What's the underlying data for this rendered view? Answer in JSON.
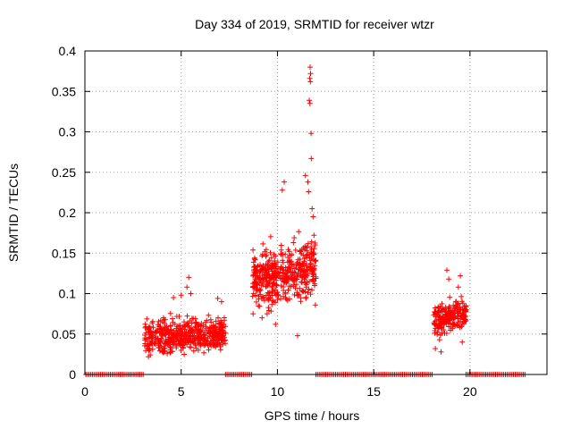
{
  "chart_data": {
    "type": "scatter",
    "title": "Day 334 of 2019, SRMTID for receiver wtzr",
    "xlabel": "GPS time / hours",
    "ylabel": "SRMTID / TECUs",
    "xlim": [
      0,
      24
    ],
    "ylim": [
      0,
      0.4
    ],
    "x_ticks": [
      0,
      5,
      10,
      15,
      20
    ],
    "x_tick_labels": [
      "0",
      "5",
      "10",
      "15",
      "20"
    ],
    "y_ticks": [
      0,
      0.05,
      0.1,
      0.15,
      0.2,
      0.25,
      0.3,
      0.35,
      0.4
    ],
    "y_tick_labels": [
      "0",
      "0.05",
      "0.1",
      "0.15",
      "0.2",
      "0.25",
      "0.3",
      "0.35",
      "0.4"
    ],
    "grid": true,
    "marker": "+",
    "color": "#ff0000",
    "series": [
      {
        "name": "SRMTID",
        "segments": [
          {
            "x_start": 3.1,
            "x_end": 7.3,
            "y_center": 0.048,
            "y_spread": 0.026,
            "count": 520
          },
          {
            "x_start": 8.7,
            "x_end": 12.0,
            "y_center": 0.125,
            "y_spread": 0.045,
            "count": 460
          },
          {
            "x_start": 18.1,
            "x_end": 19.8,
            "y_center": 0.07,
            "y_spread": 0.024,
            "count": 230
          }
        ],
        "zero_ranges": [
          [
            0.05,
            3.1
          ],
          [
            7.3,
            8.7
          ],
          [
            12.0,
            18.1
          ],
          [
            19.8,
            22.9
          ]
        ],
        "outliers": [
          [
            11.7,
            0.38
          ],
          [
            11.72,
            0.372
          ],
          [
            11.68,
            0.366
          ],
          [
            11.71,
            0.362
          ],
          [
            11.65,
            0.339
          ],
          [
            11.69,
            0.335
          ],
          [
            11.75,
            0.298
          ],
          [
            11.76,
            0.267
          ],
          [
            11.45,
            0.246
          ],
          [
            11.58,
            0.238
          ],
          [
            11.62,
            0.226
          ],
          [
            10.35,
            0.238
          ],
          [
            10.25,
            0.228
          ],
          [
            11.8,
            0.205
          ],
          [
            11.85,
            0.195
          ],
          [
            11.9,
            0.172
          ],
          [
            11.95,
            0.14
          ],
          [
            11.97,
            0.086
          ],
          [
            5.4,
            0.12
          ],
          [
            5.3,
            0.108
          ],
          [
            5.5,
            0.1
          ],
          [
            5.0,
            0.098
          ],
          [
            4.6,
            0.095
          ],
          [
            6.9,
            0.094
          ],
          [
            7.1,
            0.09
          ],
          [
            18.8,
            0.129
          ],
          [
            18.9,
            0.118
          ],
          [
            19.5,
            0.122
          ],
          [
            19.4,
            0.108
          ],
          [
            18.2,
            0.032
          ],
          [
            18.5,
            0.028
          ],
          [
            19.6,
            0.04
          ],
          [
            11.05,
            0.048
          ],
          [
            9.9,
            0.062
          ],
          [
            9.2,
            0.07
          ],
          [
            3.3,
            0.022
          ]
        ]
      }
    ]
  }
}
